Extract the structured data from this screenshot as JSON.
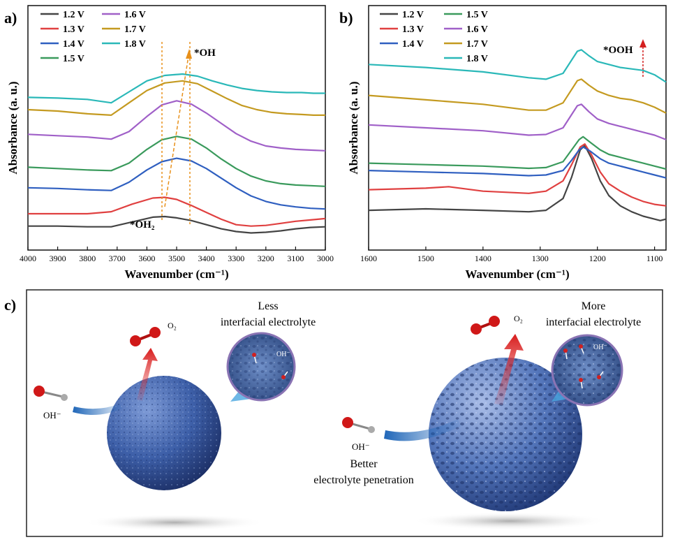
{
  "panel_a": {
    "label": "a)",
    "chart_data": {
      "type": "line",
      "xlabel": "Wavenumber (cm⁻¹)",
      "ylabel": "Absorbance (a. u.)",
      "xlim": [
        4000,
        3000
      ],
      "x_ticks": [
        "4000",
        "3900",
        "3800",
        "3700",
        "3600",
        "3500",
        "3400",
        "3300",
        "3200",
        "3100",
        "3000"
      ],
      "annotations": [
        "*OH₂",
        "*OH"
      ],
      "series": [
        {
          "name": "1.2 V",
          "color": "#444444",
          "x": [
            4000,
            3900,
            3800,
            3720,
            3650,
            3580,
            3540,
            3500,
            3450,
            3400,
            3350,
            3300,
            3250,
            3200,
            3150,
            3100,
            3050,
            3000
          ],
          "y": [
            0.1,
            0.1,
            0.09,
            0.09,
            0.16,
            0.23,
            0.24,
            0.22,
            0.18,
            0.12,
            0.06,
            0.02,
            0.0,
            0.01,
            0.03,
            0.06,
            0.08,
            0.09
          ]
        },
        {
          "name": "1.3 V",
          "color": "#e04040",
          "x": [
            4000,
            3900,
            3800,
            3720,
            3650,
            3580,
            3540,
            3500,
            3450,
            3400,
            3350,
            3300,
            3250,
            3200,
            3150,
            3100,
            3050,
            3000
          ],
          "y": [
            0.28,
            0.28,
            0.28,
            0.31,
            0.42,
            0.51,
            0.52,
            0.49,
            0.4,
            0.3,
            0.2,
            0.12,
            0.1,
            0.11,
            0.14,
            0.17,
            0.19,
            0.21
          ]
        },
        {
          "name": "1.4 V",
          "color": "#2f5fc0",
          "x": [
            4000,
            3900,
            3800,
            3720,
            3660,
            3600,
            3550,
            3500,
            3450,
            3400,
            3350,
            3300,
            3250,
            3200,
            3150,
            3100,
            3050,
            3000
          ],
          "y": [
            0.66,
            0.65,
            0.63,
            0.62,
            0.74,
            0.92,
            1.04,
            1.09,
            1.05,
            0.94,
            0.8,
            0.66,
            0.54,
            0.46,
            0.41,
            0.38,
            0.36,
            0.35
          ]
        },
        {
          "name": "1.5 V",
          "color": "#3a9a5c",
          "x": [
            4000,
            3900,
            3800,
            3720,
            3660,
            3600,
            3550,
            3500,
            3450,
            3400,
            3350,
            3300,
            3250,
            3200,
            3150,
            3100,
            3050,
            3000
          ],
          "y": [
            0.96,
            0.94,
            0.92,
            0.91,
            1.02,
            1.22,
            1.36,
            1.41,
            1.37,
            1.24,
            1.08,
            0.94,
            0.83,
            0.76,
            0.72,
            0.7,
            0.69,
            0.68
          ]
        },
        {
          "name": "1.6 V",
          "color": "#a060c8",
          "x": [
            4000,
            3900,
            3800,
            3720,
            3660,
            3600,
            3550,
            3500,
            3450,
            3400,
            3350,
            3300,
            3250,
            3200,
            3150,
            3100,
            3050,
            3000
          ],
          "y": [
            1.44,
            1.42,
            1.4,
            1.37,
            1.48,
            1.7,
            1.87,
            1.93,
            1.88,
            1.75,
            1.6,
            1.45,
            1.34,
            1.27,
            1.24,
            1.22,
            1.21,
            1.2
          ]
        },
        {
          "name": "1.7 V",
          "color": "#c49a20",
          "x": [
            4000,
            3900,
            3800,
            3720,
            3660,
            3600,
            3540,
            3480,
            3430,
            3380,
            3330,
            3280,
            3230,
            3180,
            3130,
            3080,
            3040,
            3000
          ],
          "y": [
            1.8,
            1.78,
            1.74,
            1.72,
            1.9,
            2.08,
            2.19,
            2.22,
            2.18,
            2.07,
            1.96,
            1.86,
            1.8,
            1.76,
            1.74,
            1.73,
            1.72,
            1.72
          ]
        },
        {
          "name": "1.8 V",
          "color": "#2ab8b8",
          "x": [
            4000,
            3900,
            3800,
            3720,
            3660,
            3600,
            3540,
            3480,
            3430,
            3380,
            3330,
            3280,
            3230,
            3180,
            3130,
            3080,
            3040,
            3000
          ],
          "y": [
            1.98,
            1.97,
            1.95,
            1.9,
            2.06,
            2.22,
            2.3,
            2.32,
            2.29,
            2.22,
            2.16,
            2.11,
            2.08,
            2.06,
            2.05,
            2.05,
            2.04,
            2.04
          ]
        }
      ]
    }
  },
  "panel_b": {
    "label": "b)",
    "chart_data": {
      "type": "line",
      "xlabel": "Wavenumber (cm⁻¹)",
      "ylabel": "Absorbance (a. u.)",
      "xlim": [
        1600,
        1080
      ],
      "x_ticks": [
        "1600",
        "1500",
        "1400",
        "1300",
        "1200",
        "1100"
      ],
      "annotations": [
        "*OOH"
      ],
      "series": [
        {
          "name": "1.2 V",
          "color": "#444444",
          "x": [
            1600,
            1500,
            1400,
            1320,
            1290,
            1260,
            1245,
            1230,
            1222,
            1210,
            1195,
            1180,
            1160,
            1140,
            1120,
            1100,
            1090,
            1080
          ],
          "y": [
            0.1,
            0.12,
            0.1,
            0.08,
            0.1,
            0.26,
            0.55,
            0.92,
            0.98,
            0.8,
            0.5,
            0.3,
            0.16,
            0.08,
            0.02,
            -0.02,
            -0.04,
            -0.02
          ]
        },
        {
          "name": "1.3 V",
          "color": "#e04040",
          "x": [
            1600,
            1500,
            1460,
            1400,
            1320,
            1290,
            1260,
            1245,
            1230,
            1222,
            1210,
            1195,
            1180,
            1160,
            1140,
            1120,
            1100,
            1080
          ],
          "y": [
            0.38,
            0.4,
            0.42,
            0.36,
            0.33,
            0.36,
            0.5,
            0.72,
            0.96,
            1.0,
            0.85,
            0.62,
            0.46,
            0.36,
            0.28,
            0.22,
            0.18,
            0.16
          ]
        },
        {
          "name": "1.4 V",
          "color": "#2f5fc0",
          "x": [
            1600,
            1500,
            1400,
            1320,
            1290,
            1260,
            1245,
            1232,
            1225,
            1212,
            1195,
            1180,
            1160,
            1140,
            1120,
            1100,
            1080
          ],
          "y": [
            0.64,
            0.62,
            0.6,
            0.57,
            0.58,
            0.64,
            0.78,
            0.92,
            0.96,
            0.9,
            0.8,
            0.74,
            0.7,
            0.66,
            0.62,
            0.58,
            0.54
          ]
        },
        {
          "name": "1.5 V",
          "color": "#3a9a5c",
          "x": [
            1600,
            1500,
            1400,
            1320,
            1290,
            1260,
            1245,
            1232,
            1225,
            1212,
            1195,
            1180,
            1160,
            1140,
            1120,
            1100,
            1080
          ],
          "y": [
            0.74,
            0.72,
            0.7,
            0.67,
            0.68,
            0.76,
            0.92,
            1.06,
            1.1,
            1.02,
            0.92,
            0.86,
            0.82,
            0.78,
            0.74,
            0.7,
            0.66
          ]
        },
        {
          "name": "1.6 V",
          "color": "#a060c8",
          "x": [
            1600,
            1500,
            1400,
            1320,
            1290,
            1260,
            1245,
            1235,
            1228,
            1215,
            1200,
            1180,
            1160,
            1140,
            1120,
            1100,
            1080
          ],
          "y": [
            1.26,
            1.22,
            1.18,
            1.12,
            1.13,
            1.22,
            1.4,
            1.52,
            1.54,
            1.44,
            1.34,
            1.28,
            1.24,
            1.2,
            1.16,
            1.12,
            1.06
          ]
        },
        {
          "name": "1.7 V",
          "color": "#c49a20",
          "x": [
            1600,
            1500,
            1400,
            1320,
            1290,
            1260,
            1245,
            1235,
            1228,
            1215,
            1200,
            1180,
            1160,
            1140,
            1120,
            1100,
            1080
          ],
          "y": [
            1.66,
            1.6,
            1.54,
            1.46,
            1.46,
            1.56,
            1.74,
            1.86,
            1.88,
            1.8,
            1.72,
            1.66,
            1.62,
            1.6,
            1.56,
            1.5,
            1.42
          ]
        },
        {
          "name": "1.8 V",
          "color": "#2ab8b8",
          "x": [
            1600,
            1500,
            1400,
            1320,
            1290,
            1260,
            1245,
            1235,
            1228,
            1215,
            1200,
            1180,
            1160,
            1140,
            1120,
            1100,
            1080
          ],
          "y": [
            2.08,
            2.04,
            1.98,
            1.9,
            1.88,
            1.96,
            2.14,
            2.26,
            2.28,
            2.2,
            2.12,
            2.08,
            2.04,
            2.02,
            2.0,
            1.94,
            1.84
          ]
        }
      ]
    }
  },
  "panel_c": {
    "label": "c)",
    "left": {
      "o2": "O₂",
      "oh_outside": "OH⁻",
      "oh_inside": "OH⁻",
      "title_line1": "Less",
      "title_line2": "interfacial electrolyte",
      "sphere_color": "#4a6db0"
    },
    "right": {
      "o2": "O₂",
      "oh_outside": "OH⁻",
      "oh_inside": "OH⁻",
      "title_line1": "More",
      "title_line2": "interfacial electrolyte",
      "penetration_line1": "Better",
      "penetration_line2": "electrolyte penetration",
      "sphere_color": "#5a7fc4"
    }
  }
}
